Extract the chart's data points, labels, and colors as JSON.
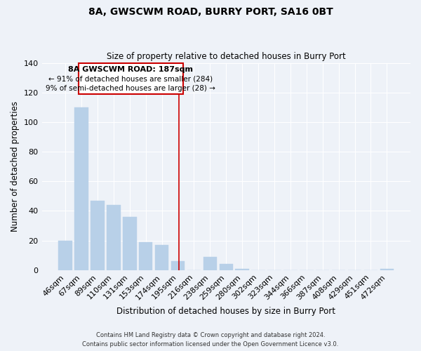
{
  "title": "8A, GWSCWM ROAD, BURRY PORT, SA16 0BT",
  "subtitle": "Size of property relative to detached houses in Burry Port",
  "xlabel": "Distribution of detached houses by size in Burry Port",
  "ylabel": "Number of detached properties",
  "bar_color": "#b8d0e8",
  "bar_edge_color": "#b8d0e8",
  "categories": [
    "46sqm",
    "67sqm",
    "89sqm",
    "110sqm",
    "131sqm",
    "153sqm",
    "174sqm",
    "195sqm",
    "216sqm",
    "238sqm",
    "259sqm",
    "280sqm",
    "302sqm",
    "323sqm",
    "344sqm",
    "366sqm",
    "387sqm",
    "408sqm",
    "429sqm",
    "451sqm",
    "472sqm"
  ],
  "values": [
    20,
    110,
    47,
    44,
    36,
    19,
    17,
    6,
    0,
    9,
    4,
    1,
    0,
    0,
    0,
    0,
    0,
    0,
    0,
    0,
    1
  ],
  "vline_x": 7.08,
  "vline_color": "#cc0000",
  "ylim": [
    0,
    140
  ],
  "yticks": [
    0,
    20,
    40,
    60,
    80,
    100,
    120,
    140
  ],
  "annotation_title": "8A GWSCWM ROAD: 187sqm",
  "annotation_line1": "← 91% of detached houses are smaller (284)",
  "annotation_line2": "9% of semi-detached houses are larger (28) →",
  "footer_line1": "Contains HM Land Registry data © Crown copyright and database right 2024.",
  "footer_line2": "Contains public sector information licensed under the Open Government Licence v3.0.",
  "background_color": "#eef2f8",
  "grid_color": "#ffffff"
}
